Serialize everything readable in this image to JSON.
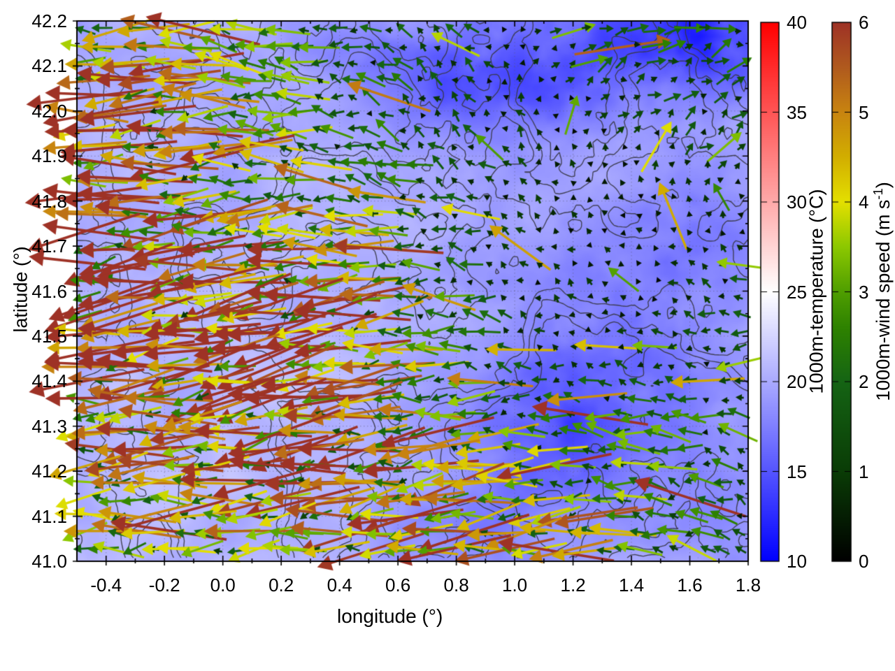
{
  "figure": {
    "xlabel": "longitude (°)",
    "ylabel": "latitude (°)",
    "x_ticks": [
      "-0.4",
      "-0.2",
      "0.0",
      "0.2",
      "0.4",
      "0.6",
      "0.8",
      "1.0",
      "1.2",
      "1.4",
      "1.6",
      "1.8"
    ],
    "y_ticks": [
      "41.0",
      "41.1",
      "41.2",
      "41.3",
      "41.4",
      "41.5",
      "41.6",
      "41.7",
      "41.8",
      "41.9",
      "42.0",
      "42.1",
      "42.2"
    ]
  },
  "colorbars": [
    {
      "label": "1000m-temperature (°C)",
      "ticks": [
        "10",
        "15",
        "20",
        "25",
        "30",
        "35",
        "40"
      ],
      "min": 10,
      "max": 40,
      "stops": [
        [
          10,
          "#0000ff"
        ],
        [
          25,
          "#ffffff"
        ],
        [
          40,
          "#ff0000"
        ]
      ]
    },
    {
      "label_prefix": "1000m-wind speed (m s",
      "label_sup": "-1",
      "label_suffix": ")",
      "ticks": [
        "0",
        "1",
        "2",
        "3",
        "4",
        "5",
        "6"
      ],
      "min": 0,
      "max": 6,
      "stops": [
        [
          0,
          "#000000"
        ],
        [
          1,
          "#0a3c06"
        ],
        [
          2,
          "#156414"
        ],
        [
          2.6,
          "#2e8200"
        ],
        [
          3,
          "#4f9e00"
        ],
        [
          3.5,
          "#8cc800"
        ],
        [
          4,
          "#e4e000"
        ],
        [
          4.5,
          "#d2ae00"
        ],
        [
          5,
          "#c88410"
        ],
        [
          5.5,
          "#b05a1e"
        ],
        [
          6,
          "#9e3226"
        ]
      ]
    }
  ],
  "chart_data": {
    "type": "vector_field_map",
    "axes": {
      "lon_min": -0.5,
      "lon_max": 1.8,
      "lat_min": 41.0,
      "lat_max": 42.2
    },
    "temperature_field": {
      "units": "°C",
      "colormap_range": [
        10,
        40
      ],
      "base_value": 20.1,
      "noise_amplitude": 1.5,
      "anomaly_spots": [
        [
          1.62,
          42.18,
          0.3,
          0.1,
          -7.5
        ],
        [
          0.8,
          42.08,
          0.2,
          0.09,
          -4.0
        ],
        [
          0.42,
          42.14,
          0.13,
          0.06,
          -2.5
        ],
        [
          1.15,
          42.03,
          0.18,
          0.09,
          -3.2
        ],
        [
          1.33,
          41.47,
          0.28,
          0.2,
          -3.4
        ],
        [
          1.62,
          41.75,
          0.15,
          0.12,
          -2.0
        ],
        [
          1.05,
          41.28,
          0.2,
          0.11,
          -3.6
        ],
        [
          0.86,
          41.06,
          0.22,
          0.09,
          -2.6
        ],
        [
          1.72,
          41.15,
          0.2,
          0.12,
          -1.5
        ],
        [
          0.3,
          41.45,
          0.4,
          0.3,
          0.9
        ],
        [
          -0.25,
          41.15,
          0.3,
          0.2,
          0.6
        ]
      ]
    },
    "contours": {
      "style": "terrain-outline",
      "levels": [
        0.47,
        0.56,
        0.65
      ]
    },
    "wind_grid": {
      "units": "m/s",
      "colormap_range": [
        0,
        6
      ],
      "lons": [
        -0.5,
        -0.291,
        -0.082,
        0.127,
        0.336,
        0.545,
        0.755,
        0.964,
        1.173,
        1.382,
        1.591,
        1.8
      ],
      "lats": [
        42.2,
        42.05,
        41.9,
        41.75,
        41.6,
        41.45,
        41.3,
        41.15,
        41.0
      ],
      "u": [
        [
          -4.2,
          -4.0,
          -3.6,
          -2.6,
          -2.0,
          -1.6,
          -1.2,
          -0.8,
          1.5,
          2.2,
          2.5,
          1.8
        ],
        [
          -4.5,
          -4.2,
          -3.8,
          -3.0,
          -2.2,
          -1.5,
          -1.0,
          -0.6,
          0.4,
          1.0,
          1.4,
          1.0
        ],
        [
          -4.8,
          -4.5,
          -4.0,
          -3.2,
          -2.5,
          -1.8,
          -1.2,
          -0.8,
          -0.5,
          0.3,
          0.8,
          0.8
        ],
        [
          -5.0,
          -4.8,
          -4.5,
          -4.0,
          -3.2,
          -2.2,
          -1.4,
          -0.8,
          -0.5,
          -0.3,
          -0.5,
          -0.8
        ],
        [
          -4.8,
          -5.0,
          -5.2,
          -5.5,
          -5.0,
          -3.8,
          -2.2,
          -1.2,
          -0.6,
          -0.5,
          -0.8,
          -1.2
        ],
        [
          -4.5,
          -4.8,
          -5.0,
          -5.5,
          -5.5,
          -4.5,
          -2.5,
          -1.2,
          -0.8,
          -0.9,
          -1.4,
          -1.8
        ],
        [
          -3.8,
          -4.0,
          -4.2,
          -5.0,
          -5.2,
          -4.5,
          -3.0,
          -2.2,
          -2.4,
          -2.5,
          -2.2,
          -1.6
        ],
        [
          -3.5,
          -3.8,
          -3.8,
          -4.0,
          -4.2,
          -4.5,
          -4.2,
          -3.8,
          -3.2,
          -2.8,
          -2.2,
          -1.4
        ],
        [
          -3.0,
          -3.2,
          -3.0,
          -3.5,
          -3.8,
          -4.2,
          -4.6,
          -4.2,
          -3.4,
          -2.8,
          -2.0,
          -1.2
        ]
      ],
      "v": [
        [
          -0.3,
          -0.2,
          0.2,
          0.4,
          0.3,
          0.6,
          0.8,
          0.6,
          0.5,
          0.4,
          0.6,
          0.8
        ],
        [
          -0.3,
          -0.2,
          0.0,
          0.3,
          0.5,
          0.8,
          0.9,
          0.7,
          0.5,
          0.5,
          0.8,
          1.0
        ],
        [
          -0.4,
          -0.3,
          -0.2,
          0.2,
          0.4,
          0.6,
          0.8,
          0.8,
          0.6,
          0.6,
          0.8,
          0.6
        ],
        [
          -0.5,
          -0.5,
          -0.4,
          -0.3,
          0.0,
          0.3,
          0.5,
          0.5,
          0.4,
          0.3,
          0.5,
          0.5
        ],
        [
          -0.5,
          -0.6,
          -0.8,
          -0.8,
          -0.6,
          -0.3,
          0.2,
          0.4,
          0.4,
          0.3,
          0.4,
          0.4
        ],
        [
          -0.4,
          -0.5,
          -0.8,
          -1.0,
          -0.8,
          -0.5,
          0.0,
          0.3,
          0.3,
          0.2,
          0.2,
          0.1
        ],
        [
          -0.3,
          -0.4,
          -0.5,
          -0.8,
          -0.8,
          -0.5,
          -0.3,
          0.2,
          0.3,
          0.4,
          0.4,
          0.5
        ],
        [
          -0.2,
          -0.3,
          -0.3,
          -0.4,
          -0.5,
          -0.6,
          -0.8,
          -0.6,
          -0.2,
          0.3,
          0.5,
          0.7
        ],
        [
          -0.2,
          -0.2,
          -0.2,
          -0.3,
          -0.3,
          -0.5,
          -0.6,
          -0.5,
          -0.3,
          0.2,
          0.4,
          0.6
        ]
      ]
    }
  }
}
